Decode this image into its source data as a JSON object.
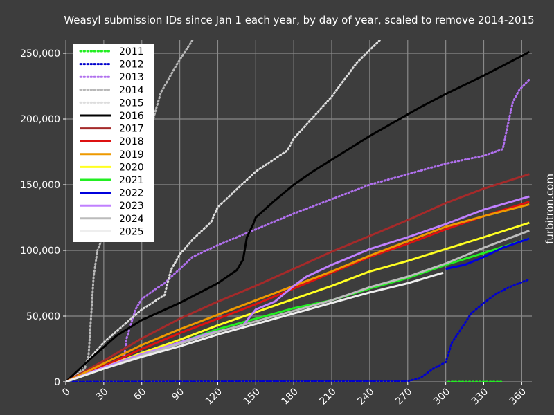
{
  "chart_data": {
    "type": "line",
    "title": "Weasyl submission IDs since Jan 1 each year, by day of year, scaled to remove 2014-2015",
    "xlabel": "",
    "ylabel": "",
    "xlim": [
      0,
      368
    ],
    "ylim": [
      0,
      260000
    ],
    "grid": true,
    "legend_position": "top-left",
    "xticks": [
      0,
      30,
      60,
      90,
      120,
      150,
      180,
      210,
      240,
      270,
      300,
      330,
      360
    ],
    "xtick_labels": [
      "0",
      "30",
      "60",
      "90",
      "120",
      "150",
      "180",
      "210",
      "240",
      "270",
      "300",
      "330",
      "360"
    ],
    "yticks": [
      0,
      50000,
      100000,
      150000,
      200000,
      250000
    ],
    "ytick_labels": [
      "0",
      "50,000",
      "100,000",
      "150,000",
      "200,000",
      "250,000"
    ],
    "watermark": "furbitron.com",
    "series": [
      {
        "name": "2011",
        "color": "#22ee22",
        "dash": "dotted",
        "points": [
          [
            302,
            0
          ],
          [
            345,
            0
          ]
        ]
      },
      {
        "name": "2012",
        "color": "#0000cc",
        "dash": "dotted",
        "points": [
          [
            0,
            0
          ],
          [
            100,
            200
          ],
          [
            200,
            500
          ],
          [
            270,
            500
          ],
          [
            280,
            3000
          ],
          [
            290,
            10000
          ],
          [
            300,
            15000
          ],
          [
            305,
            30000
          ],
          [
            312,
            40000
          ],
          [
            320,
            52000
          ],
          [
            330,
            60000
          ],
          [
            340,
            67000
          ],
          [
            350,
            72000
          ],
          [
            358,
            75000
          ],
          [
            366,
            78000
          ]
        ]
      },
      {
        "name": "2013",
        "color": "#b070ee",
        "dash": "dotted",
        "points": [
          [
            0,
            0
          ],
          [
            46,
            18000
          ],
          [
            48,
            33000
          ],
          [
            55,
            55000
          ],
          [
            60,
            63000
          ],
          [
            70,
            70000
          ],
          [
            78,
            75000
          ],
          [
            90,
            86000
          ],
          [
            100,
            95000
          ],
          [
            120,
            104000
          ],
          [
            150,
            116000
          ],
          [
            180,
            128000
          ],
          [
            210,
            139000
          ],
          [
            240,
            150000
          ],
          [
            270,
            158000
          ],
          [
            300,
            166000
          ],
          [
            330,
            172000
          ],
          [
            345,
            177000
          ],
          [
            350,
            200000
          ],
          [
            353,
            213000
          ],
          [
            358,
            222000
          ],
          [
            366,
            230000
          ]
        ]
      },
      {
        "name": "2014",
        "color": "#b8b8b8",
        "dash": "dotted",
        "points": [
          [
            0,
            0
          ],
          [
            15,
            10000
          ],
          [
            18,
            20000
          ],
          [
            20,
            50000
          ],
          [
            22,
            80000
          ],
          [
            25,
            100000
          ],
          [
            30,
            112000
          ],
          [
            40,
            140000
          ],
          [
            60,
            170000
          ],
          [
            75,
            220000
          ],
          [
            88,
            242000
          ],
          [
            100,
            260000
          ]
        ]
      },
      {
        "name": "2015",
        "color": "#dddddd",
        "dash": "dotted",
        "points": [
          [
            0,
            0
          ],
          [
            10,
            8000
          ],
          [
            30,
            30000
          ],
          [
            60,
            55000
          ],
          [
            78,
            66000
          ],
          [
            83,
            85000
          ],
          [
            90,
            97000
          ],
          [
            100,
            108000
          ],
          [
            115,
            122000
          ],
          [
            120,
            133000
          ],
          [
            150,
            160000
          ],
          [
            175,
            176000
          ],
          [
            180,
            185000
          ],
          [
            210,
            217000
          ],
          [
            230,
            243000
          ],
          [
            248,
            260000
          ]
        ]
      },
      {
        "name": "2016",
        "color": "#000000",
        "dash": "solid",
        "points": [
          [
            0,
            0
          ],
          [
            20,
            18000
          ],
          [
            40,
            35000
          ],
          [
            60,
            47000
          ],
          [
            90,
            60000
          ],
          [
            120,
            75000
          ],
          [
            135,
            85000
          ],
          [
            140,
            93000
          ],
          [
            143,
            110000
          ],
          [
            148,
            120000
          ],
          [
            150,
            125000
          ],
          [
            165,
            138000
          ],
          [
            180,
            150000
          ],
          [
            195,
            160000
          ],
          [
            210,
            169000
          ],
          [
            240,
            187000
          ],
          [
            260,
            198000
          ],
          [
            280,
            209000
          ],
          [
            300,
            219000
          ],
          [
            330,
            233000
          ],
          [
            350,
            243000
          ],
          [
            366,
            251000
          ]
        ]
      },
      {
        "name": "2017",
        "color": "#a52a2a",
        "dash": "solid",
        "points": [
          [
            0,
            0
          ],
          [
            30,
            16000
          ],
          [
            60,
            33000
          ],
          [
            90,
            48000
          ],
          [
            120,
            61000
          ],
          [
            150,
            73000
          ],
          [
            180,
            86000
          ],
          [
            210,
            99000
          ],
          [
            240,
            111000
          ],
          [
            270,
            123000
          ],
          [
            300,
            136000
          ],
          [
            330,
            147000
          ],
          [
            366,
            158000
          ]
        ]
      },
      {
        "name": "2018",
        "color": "#dd1111",
        "dash": "solid",
        "points": [
          [
            0,
            0
          ],
          [
            30,
            12000
          ],
          [
            60,
            25000
          ],
          [
            90,
            37000
          ],
          [
            120,
            48000
          ],
          [
            150,
            59000
          ],
          [
            180,
            71000
          ],
          [
            210,
            83000
          ],
          [
            240,
            95000
          ],
          [
            270,
            105000
          ],
          [
            300,
            116000
          ],
          [
            330,
            126000
          ],
          [
            366,
            137000
          ]
        ]
      },
      {
        "name": "2019",
        "color": "#ee9900",
        "dash": "solid",
        "points": [
          [
            0,
            0
          ],
          [
            30,
            14000
          ],
          [
            60,
            28000
          ],
          [
            90,
            40000
          ],
          [
            120,
            51000
          ],
          [
            150,
            62000
          ],
          [
            180,
            73000
          ],
          [
            210,
            84000
          ],
          [
            240,
            96000
          ],
          [
            270,
            107000
          ],
          [
            300,
            118000
          ],
          [
            330,
            126000
          ],
          [
            366,
            135000
          ]
        ]
      },
      {
        "name": "2020",
        "color": "#ffff22",
        "dash": "solid",
        "points": [
          [
            0,
            0
          ],
          [
            30,
            11000
          ],
          [
            60,
            22000
          ],
          [
            90,
            32000
          ],
          [
            120,
            43000
          ],
          [
            150,
            53000
          ],
          [
            180,
            63000
          ],
          [
            210,
            73000
          ],
          [
            240,
            84000
          ],
          [
            270,
            92000
          ],
          [
            300,
            101000
          ],
          [
            330,
            110000
          ],
          [
            366,
            121000
          ]
        ]
      },
      {
        "name": "2021",
        "color": "#22ee22",
        "dash": "solid",
        "points": [
          [
            0,
            0
          ],
          [
            30,
            10000
          ],
          [
            60,
            20000
          ],
          [
            90,
            30000
          ],
          [
            120,
            40000
          ],
          [
            150,
            48000
          ],
          [
            180,
            56000
          ],
          [
            210,
            62000
          ],
          [
            240,
            71000
          ],
          [
            270,
            79000
          ],
          [
            300,
            89000
          ],
          [
            330,
            98000
          ],
          [
            366,
            109000
          ]
        ]
      },
      {
        "name": "2022",
        "color": "#0000dd",
        "dash": "solid",
        "points": [
          [
            300,
            86000
          ],
          [
            315,
            89000
          ],
          [
            330,
            95000
          ],
          [
            345,
            102000
          ],
          [
            366,
            109000
          ]
        ]
      },
      {
        "name": "2023",
        "color": "#c080ff",
        "dash": "solid",
        "points": [
          [
            0,
            0
          ],
          [
            30,
            11000
          ],
          [
            60,
            21000
          ],
          [
            90,
            30000
          ],
          [
            110,
            36000
          ],
          [
            140,
            43000
          ],
          [
            150,
            55000
          ],
          [
            165,
            61000
          ],
          [
            170,
            65000
          ],
          [
            180,
            73000
          ],
          [
            190,
            80000
          ],
          [
            210,
            89000
          ],
          [
            240,
            101000
          ],
          [
            270,
            110000
          ],
          [
            300,
            120000
          ],
          [
            330,
            131000
          ],
          [
            366,
            141000
          ]
        ]
      },
      {
        "name": "2024",
        "color": "#bbbbbb",
        "dash": "solid",
        "points": [
          [
            0,
            0
          ],
          [
            30,
            10000
          ],
          [
            60,
            20000
          ],
          [
            90,
            29000
          ],
          [
            120,
            38000
          ],
          [
            150,
            46000
          ],
          [
            180,
            54000
          ],
          [
            210,
            62000
          ],
          [
            240,
            72000
          ],
          [
            270,
            80000
          ],
          [
            300,
            90000
          ],
          [
            330,
            102000
          ],
          [
            366,
            115000
          ]
        ]
      },
      {
        "name": "2025",
        "color": "#eeeeee",
        "dash": "solid",
        "points": [
          [
            0,
            0
          ],
          [
            30,
            10000
          ],
          [
            60,
            19000
          ],
          [
            90,
            27000
          ],
          [
            120,
            36000
          ],
          [
            150,
            44000
          ],
          [
            180,
            52000
          ],
          [
            210,
            60000
          ],
          [
            240,
            68000
          ],
          [
            270,
            75000
          ],
          [
            298,
            83000
          ]
        ]
      }
    ]
  }
}
